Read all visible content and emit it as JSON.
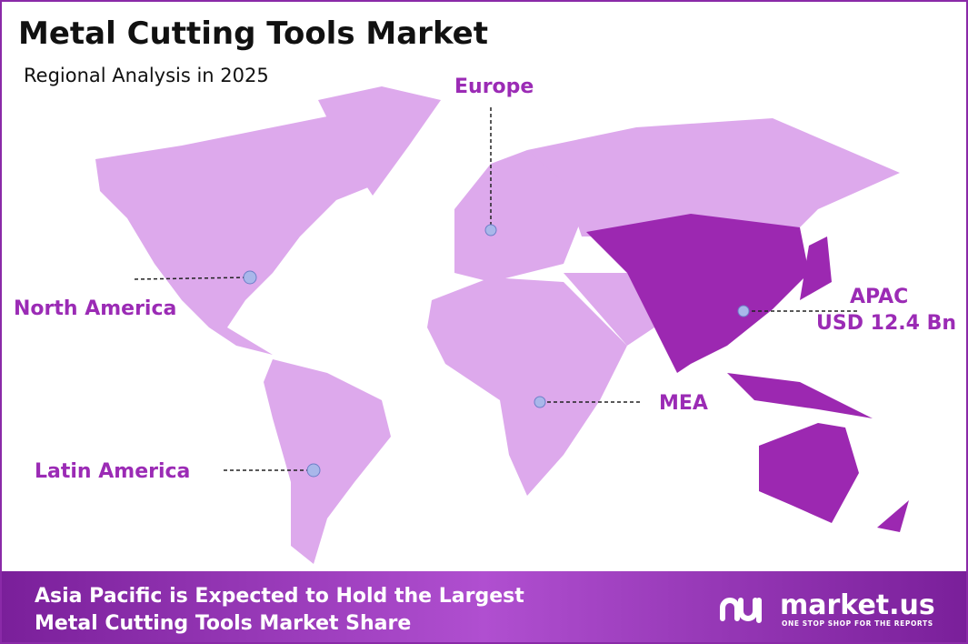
{
  "header": {
    "title": "Metal Cutting Tools Market",
    "subtitle": "Regional Analysis in 2025"
  },
  "regions": [
    {
      "label": "Europe"
    },
    {
      "label": "North America"
    },
    {
      "label": "APAC",
      "value": "USD 12.4 Bn"
    },
    {
      "label": "MEA"
    },
    {
      "label": "Latin America"
    }
  ],
  "footer": {
    "lines": [
      "Asia Pacific is Expected to Hold the Largest",
      "Metal Cutting Tools Market Share"
    ],
    "brand": "market.us",
    "tagline": "ONE STOP SHOP FOR THE REPORTS"
  }
}
